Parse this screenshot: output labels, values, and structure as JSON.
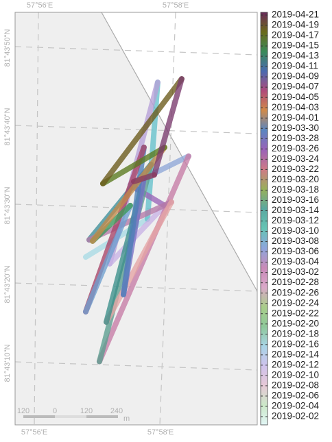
{
  "chart_data": {
    "type": "track",
    "xlim": [
      57.93333,
      57.96667
    ],
    "ylim": [
      81.72222,
      81.72778
    ],
    "lon_labels": [
      "57°56'E",
      "57°58'E"
    ],
    "lat_labels": [
      "81°43'50\"N",
      "81°43'40\"N",
      "81°43'30\"N",
      "81°43'20\"N",
      "81°43'10\"N"
    ],
    "scale_labels": [
      "120",
      "0",
      "120",
      "240",
      "m"
    ],
    "lon": [
      57.94613,
      57.96192,
      57.96455,
      57.95227,
      57.96631,
      57.95754,
      57.97244,
      57.94964,
      57.9628,
      57.94701,
      57.96806,
      57.9514,
      57.96104,
      57.95578,
      57.96104,
      57.94613,
      57.95754,
      57.94789,
      57.96631,
      57.95052,
      57.97069,
      57.96367,
      57.95841
    ],
    "lat": [
      81.72327,
      81.72468,
      81.72952,
      81.72306,
      81.72518,
      81.72586,
      81.72695,
      81.7196,
      81.72661,
      81.72388,
      81.72531,
      81.721,
      81.72612,
      81.72199,
      81.72721,
      81.72134,
      81.72514,
      81.72384,
      81.72723,
      81.72588,
      81.72967,
      81.72625,
      81.72599
    ],
    "colors": [
      "#cfeef0",
      "#a9dbe6",
      "#66c2cc",
      "#b7a0d8",
      "#c9b3e6",
      "#9b66b8",
      "#8fa8d8",
      "#c77da7",
      "#5b9e8f",
      "#3f8f9a",
      "#b57aa8",
      "#e6a5a5",
      "#3b8f8a",
      "#7b73c8",
      "#4f7fb8",
      "#a84468",
      "#6fa0d0",
      "#3e9a5a",
      "#c48a4a",
      "#5a7a1e",
      "#6b5a1a",
      "#7a3b6e",
      "#8b3a5e"
    ],
    "colorbar": {
      "ticks": [
        "2019-04-21",
        "2019-04-19",
        "2019-04-17",
        "2019-04-15",
        "2019-04-13",
        "2019-04-11",
        "2019-04-09",
        "2019-04-07",
        "2019-04-05",
        "2019-04-03",
        "2019-04-01",
        "2019-03-30",
        "2019-03-28",
        "2019-03-26",
        "2019-03-24",
        "2019-03-22",
        "2019-03-20",
        "2019-03-18",
        "2019-03-16",
        "2019-03-14",
        "2019-03-12",
        "2019-03-10",
        "2019-03-08",
        "2019-03-06",
        "2019-03-04",
        "2019-03-02",
        "2019-02-28",
        "2019-02-26",
        "2019-02-24",
        "2019-02-22",
        "2019-02-20",
        "2019-02-18",
        "2019-02-16",
        "2019-02-14",
        "2019-02-12",
        "2019-02-10",
        "2019-02-08",
        "2019-02-06",
        "2019-02-04",
        "2019-02-02"
      ],
      "colors": [
        "#e2f6f6",
        "#cbe8c8",
        "#e6c8d6",
        "#cfc2ec",
        "#a8d4e6",
        "#8ec89a",
        "#a9cd8a",
        "#d9a8c8",
        "#c88ab8",
        "#8da6dc",
        "#66c4b4",
        "#5aa8a0",
        "#98b05a",
        "#cf7a86",
        "#9a62b8",
        "#5a86c0",
        "#d08a4a",
        "#b04a7a",
        "#4a6ab0",
        "#3a8a5a",
        "#6a6a1a",
        "#6a2a5a"
      ]
    }
  }
}
